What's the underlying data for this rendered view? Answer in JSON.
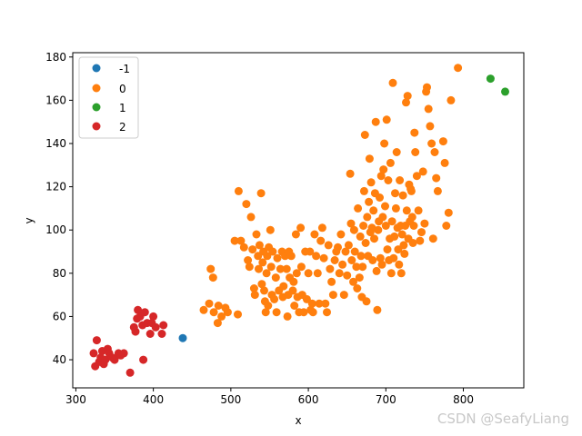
{
  "chart_data": {
    "type": "scatter",
    "xlabel": "x",
    "ylabel": "y",
    "xlim": [
      296,
      878
    ],
    "ylim": [
      27,
      182
    ],
    "xticks": [
      300,
      400,
      500,
      600,
      700,
      800
    ],
    "yticks": [
      40,
      60,
      80,
      100,
      120,
      140,
      160,
      180
    ],
    "legend_position": "upper-left",
    "series": [
      {
        "name": "-1",
        "color": "#1f77b4",
        "points": [
          [
            438,
            50
          ]
        ]
      },
      {
        "name": "0",
        "color": "#ff7f0e",
        "points": [
          [
            465,
            63
          ],
          [
            472,
            66
          ],
          [
            474,
            82
          ],
          [
            477,
            78
          ],
          [
            478,
            62
          ],
          [
            484,
            65
          ],
          [
            483,
            57
          ],
          [
            488,
            60
          ],
          [
            493,
            64
          ],
          [
            496,
            62
          ],
          [
            505,
            95
          ],
          [
            509,
            61
          ],
          [
            510,
            118
          ],
          [
            513,
            95
          ],
          [
            517,
            92
          ],
          [
            520,
            112
          ],
          [
            522,
            86
          ],
          [
            524,
            83
          ],
          [
            526,
            106
          ],
          [
            528,
            91
          ],
          [
            530,
            73
          ],
          [
            531,
            70
          ],
          [
            533,
            98
          ],
          [
            535,
            88
          ],
          [
            536,
            82
          ],
          [
            537,
            93
          ],
          [
            539,
            117
          ],
          [
            540,
            75
          ],
          [
            541,
            85
          ],
          [
            542,
            90
          ],
          [
            543,
            72
          ],
          [
            544,
            67
          ],
          [
            545,
            62
          ],
          [
            546,
            80
          ],
          [
            547,
            88
          ],
          [
            548,
            65
          ],
          [
            549,
            92
          ],
          [
            551,
            100
          ],
          [
            552,
            83
          ],
          [
            553,
            70
          ],
          [
            554,
            90
          ],
          [
            556,
            68
          ],
          [
            558,
            78
          ],
          [
            559,
            62
          ],
          [
            560,
            87
          ],
          [
            562,
            72
          ],
          [
            564,
            82
          ],
          [
            566,
            90
          ],
          [
            567,
            69
          ],
          [
            568,
            74
          ],
          [
            570,
            88
          ],
          [
            572,
            82
          ],
          [
            573,
            60
          ],
          [
            574,
            70
          ],
          [
            575,
            90
          ],
          [
            576,
            78
          ],
          [
            578,
            88
          ],
          [
            580,
            72
          ],
          [
            581,
            76
          ],
          [
            582,
            65
          ],
          [
            584,
            98
          ],
          [
            585,
            80
          ],
          [
            586,
            69
          ],
          [
            588,
            62
          ],
          [
            590,
            101
          ],
          [
            591,
            83
          ],
          [
            592,
            70
          ],
          [
            594,
            62
          ],
          [
            596,
            90
          ],
          [
            598,
            68
          ],
          [
            600,
            80
          ],
          [
            602,
            90
          ],
          [
            603,
            63
          ],
          [
            605,
            66
          ],
          [
            606,
            62
          ],
          [
            608,
            98
          ],
          [
            610,
            88
          ],
          [
            612,
            80
          ],
          [
            614,
            66
          ],
          [
            616,
            95
          ],
          [
            618,
            101
          ],
          [
            620,
            87
          ],
          [
            622,
            66
          ],
          [
            624,
            62
          ],
          [
            626,
            93
          ],
          [
            628,
            82
          ],
          [
            630,
            76
          ],
          [
            632,
            70
          ],
          [
            634,
            86
          ],
          [
            636,
            90
          ],
          [
            638,
            92
          ],
          [
            640,
            80
          ],
          [
            642,
            98
          ],
          [
            644,
            84
          ],
          [
            646,
            70
          ],
          [
            648,
            90
          ],
          [
            650,
            79
          ],
          [
            652,
            93
          ],
          [
            654,
            126
          ],
          [
            655,
            103
          ],
          [
            656,
            86
          ],
          [
            658,
            76
          ],
          [
            659,
            100
          ],
          [
            660,
            90
          ],
          [
            662,
            83
          ],
          [
            663,
            73
          ],
          [
            664,
            110
          ],
          [
            666,
            78
          ],
          [
            667,
            97
          ],
          [
            668,
            88
          ],
          [
            669,
            69
          ],
          [
            670,
            83
          ],
          [
            671,
            102
          ],
          [
            672,
            118
          ],
          [
            673,
            144
          ],
          [
            674,
            94
          ],
          [
            675,
            67
          ],
          [
            676,
            106
          ],
          [
            677,
            88
          ],
          [
            678,
            113
          ],
          [
            679,
            133
          ],
          [
            680,
            99
          ],
          [
            681,
            122
          ],
          [
            682,
            101
          ],
          [
            683,
            86
          ],
          [
            684,
            109
          ],
          [
            685,
            96
          ],
          [
            686,
            117
          ],
          [
            687,
            150
          ],
          [
            688,
            81
          ],
          [
            689,
            63
          ],
          [
            690,
            100
          ],
          [
            691,
            104
          ],
          [
            692,
            115
          ],
          [
            693,
            87
          ],
          [
            694,
            125
          ],
          [
            695,
            84
          ],
          [
            696,
            106
          ],
          [
            697,
            128
          ],
          [
            698,
            140
          ],
          [
            699,
            111
          ],
          [
            700,
            102
          ],
          [
            701,
            151
          ],
          [
            702,
            91
          ],
          [
            703,
            123
          ],
          [
            704,
            86
          ],
          [
            705,
            96
          ],
          [
            706,
            131
          ],
          [
            707,
            80
          ],
          [
            708,
            104
          ],
          [
            709,
            168
          ],
          [
            710,
            87
          ],
          [
            711,
            97
          ],
          [
            712,
            117
          ],
          [
            713,
            110
          ],
          [
            714,
            136
          ],
          [
            715,
            101
          ],
          [
            716,
            91
          ],
          [
            717,
            84
          ],
          [
            718,
            123
          ],
          [
            719,
            102
          ],
          [
            720,
            80
          ],
          [
            721,
            98
          ],
          [
            722,
            116
          ],
          [
            723,
            93
          ],
          [
            724,
            89
          ],
          [
            725,
            102
          ],
          [
            726,
            159
          ],
          [
            727,
            109
          ],
          [
            728,
            162
          ],
          [
            729,
            96
          ],
          [
            730,
            121
          ],
          [
            731,
            104
          ],
          [
            732,
            119
          ],
          [
            733,
            118
          ],
          [
            734,
            106
          ],
          [
            735,
            94
          ],
          [
            736,
            102
          ],
          [
            737,
            145
          ],
          [
            738,
            136
          ],
          [
            740,
            125
          ],
          [
            742,
            109
          ],
          [
            744,
            95
          ],
          [
            746,
            99
          ],
          [
            748,
            127
          ],
          [
            750,
            103
          ],
          [
            752,
            164
          ],
          [
            753,
            166
          ],
          [
            755,
            156
          ],
          [
            757,
            148
          ],
          [
            759,
            140
          ],
          [
            761,
            96
          ],
          [
            763,
            136
          ],
          [
            765,
            124
          ],
          [
            767,
            118
          ],
          [
            774,
            141
          ],
          [
            776,
            131
          ],
          [
            778,
            102
          ],
          [
            781,
            108
          ],
          [
            784,
            160
          ],
          [
            793,
            175
          ]
        ]
      },
      {
        "name": "1",
        "color": "#2ca02c",
        "points": [
          [
            835,
            170
          ],
          [
            854,
            164
          ]
        ]
      },
      {
        "name": "2",
        "color": "#d62728",
        "points": [
          [
            323,
            43
          ],
          [
            325,
            37
          ],
          [
            327,
            49
          ],
          [
            330,
            39
          ],
          [
            332,
            41
          ],
          [
            334,
            44
          ],
          [
            336,
            38
          ],
          [
            338,
            40
          ],
          [
            341,
            45
          ],
          [
            343,
            43
          ],
          [
            347,
            41
          ],
          [
            350,
            40
          ],
          [
            355,
            43
          ],
          [
            358,
            42
          ],
          [
            362,
            43
          ],
          [
            370,
            34
          ],
          [
            375,
            55
          ],
          [
            377,
            53
          ],
          [
            379,
            59
          ],
          [
            380,
            63
          ],
          [
            383,
            60
          ],
          [
            386,
            56
          ],
          [
            387,
            40
          ],
          [
            389,
            62
          ],
          [
            392,
            57
          ],
          [
            396,
            52
          ],
          [
            398,
            57
          ],
          [
            400,
            60
          ],
          [
            403,
            55
          ],
          [
            411,
            52
          ],
          [
            413,
            56
          ]
        ]
      }
    ]
  },
  "legend": {
    "items": [
      {
        "label": "-1",
        "color": "#1f77b4"
      },
      {
        "label": "0",
        "color": "#ff7f0e"
      },
      {
        "label": "1",
        "color": "#2ca02c"
      },
      {
        "label": "2",
        "color": "#d62728"
      }
    ]
  },
  "watermark": "CSDN @SeafyLiang"
}
